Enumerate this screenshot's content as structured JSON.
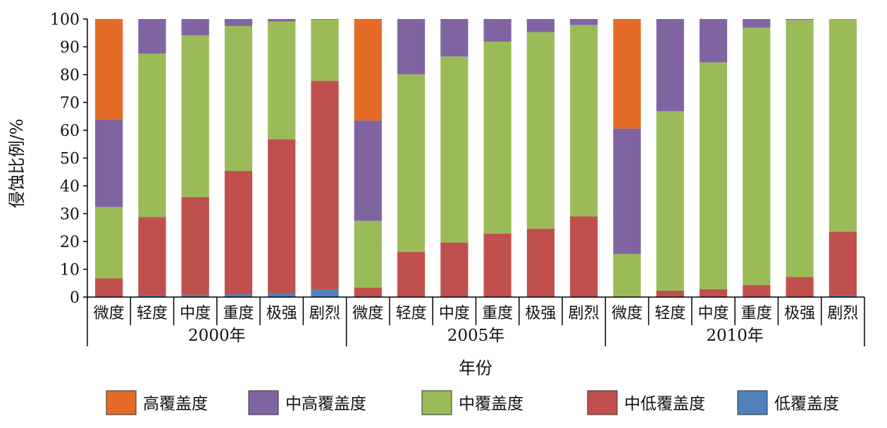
{
  "chart_data": {
    "type": "bar",
    "stacked": true,
    "ylabel": "侵蚀比例/%",
    "xlabel": "年份",
    "ylim": [
      0,
      100
    ],
    "yticks": [
      0,
      10,
      20,
      30,
      40,
      50,
      60,
      70,
      80,
      90,
      100
    ],
    "groups": [
      {
        "label": "2000年",
        "categories": [
          "微度",
          "轻度",
          "中度",
          "重度",
          "极强",
          "剧烈"
        ]
      },
      {
        "label": "2005年",
        "categories": [
          "微度",
          "轻度",
          "中度",
          "重度",
          "极强",
          "剧烈"
        ]
      },
      {
        "label": "2010年",
        "categories": [
          "微度",
          "轻度",
          "中度",
          "重度",
          "极强",
          "剧烈"
        ]
      }
    ],
    "series": [
      {
        "name": "低覆盖度",
        "color": "#4f81bd",
        "values": [
          0,
          0.5,
          0.8,
          1.0,
          1.4,
          2.8,
          0,
          0,
          0,
          0,
          0,
          0,
          0,
          0,
          0,
          0,
          0,
          0.5
        ]
      },
      {
        "name": "中低覆盖度",
        "color": "#c0504d",
        "values": [
          6.7,
          28.3,
          35.2,
          44.4,
          55.3,
          75.0,
          3.4,
          16.2,
          19.6,
          22.8,
          24.6,
          29.0,
          0,
          2.3,
          2.8,
          4.3,
          7.2,
          23.0
        ]
      },
      {
        "name": "中覆盖度",
        "color": "#9bbb59",
        "values": [
          25.7,
          58.8,
          58.1,
          52.1,
          42.4,
          22.0,
          24.0,
          63.9,
          66.9,
          69.1,
          70.7,
          68.8,
          15.5,
          64.5,
          81.6,
          92.6,
          92.5,
          76.5
        ]
      },
      {
        "name": "中高覆盖度",
        "color": "#8064a2",
        "values": [
          31.4,
          12.4,
          5.9,
          2.5,
          0.9,
          0.2,
          36.1,
          19.9,
          13.5,
          8.1,
          4.7,
          2.2,
          45.1,
          33.2,
          15.6,
          3.1,
          0.3,
          0
        ]
      },
      {
        "name": "高覆盖度",
        "color": "#e46c26",
        "values": [
          36.2,
          0,
          0,
          0,
          0,
          0,
          36.5,
          0,
          0,
          0,
          0,
          0,
          39.4,
          0,
          0,
          0,
          0,
          0
        ]
      }
    ],
    "legend_order": [
      "高覆盖度",
      "中高覆盖度",
      "中覆盖度",
      "中低覆盖度",
      "低覆盖度"
    ],
    "legend_position": "bottom"
  }
}
